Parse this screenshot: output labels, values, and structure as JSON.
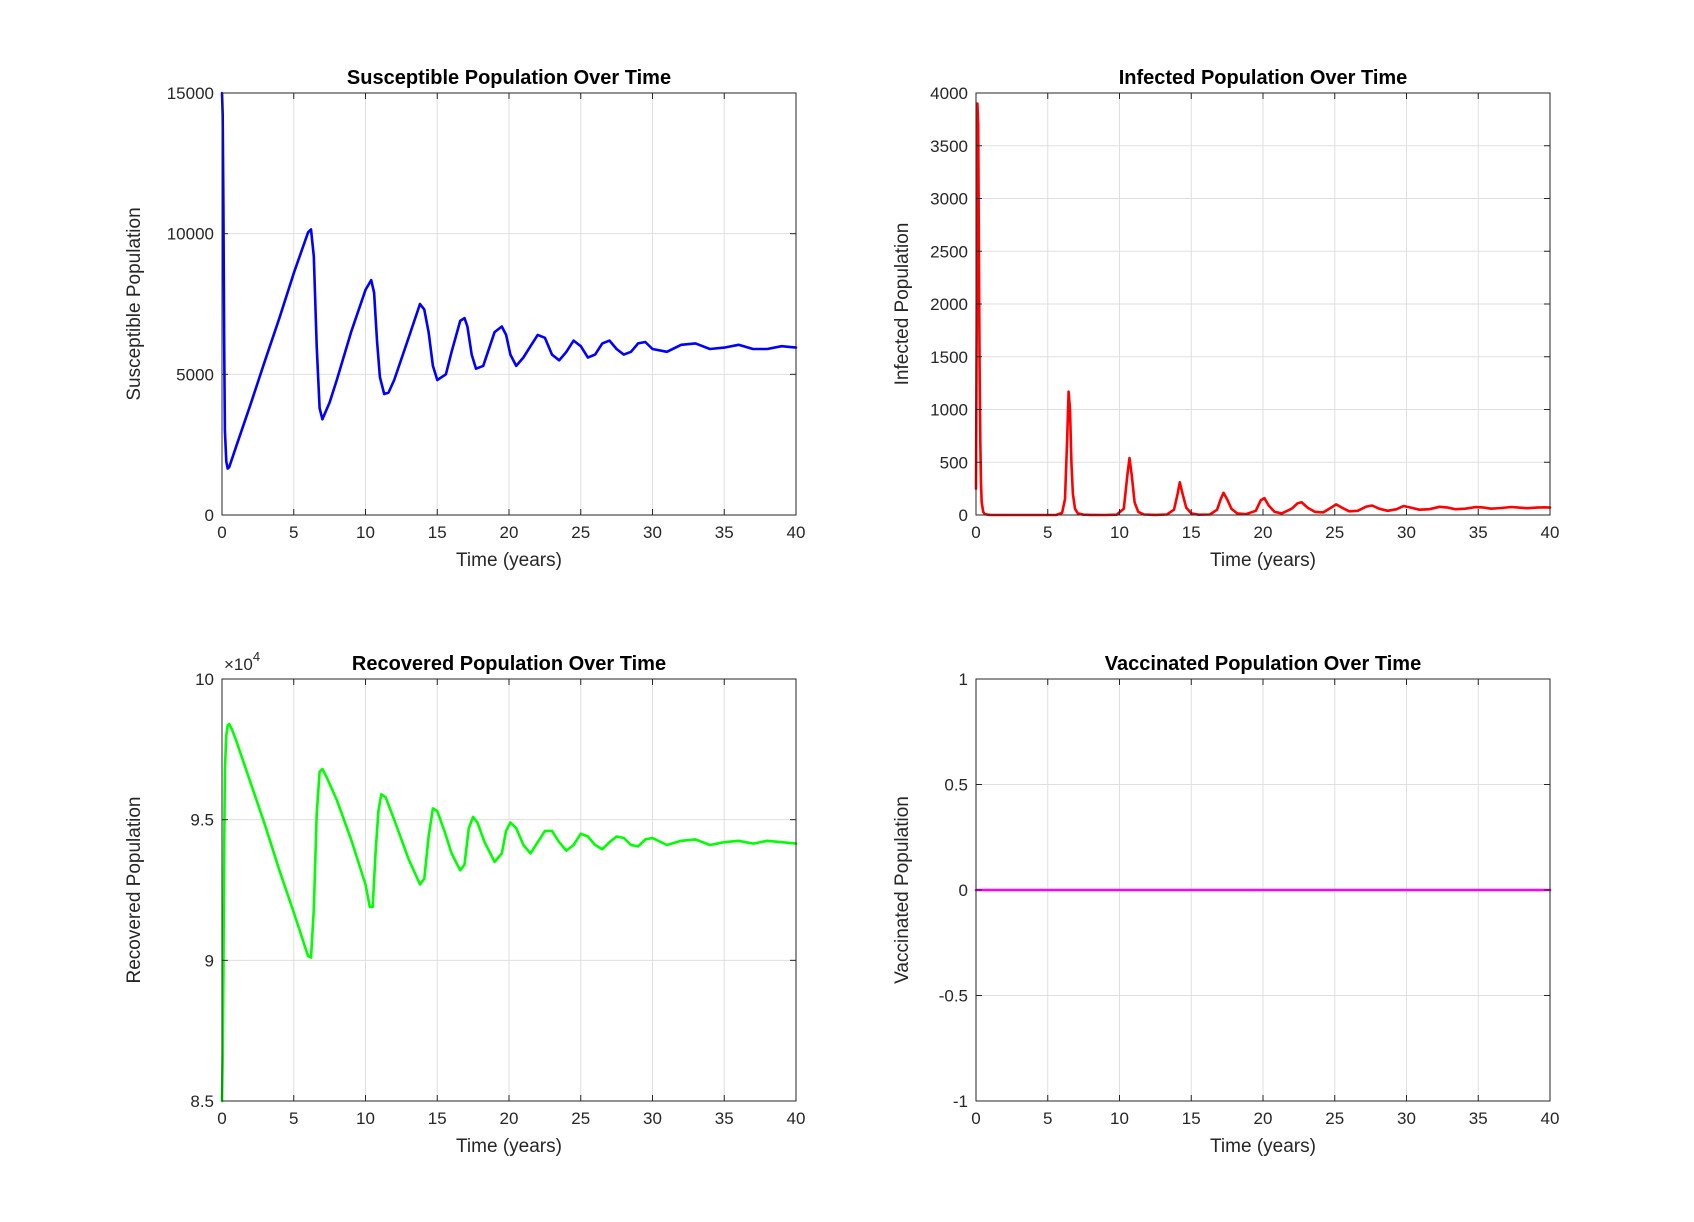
{
  "chart_data": [
    {
      "type": "line",
      "title": "Susceptible Population Over Time",
      "xlabel": "Time (years)",
      "ylabel": "Susceptible Population",
      "xlim": [
        0,
        40
      ],
      "ylim": [
        0,
        15000
      ],
      "xticks": [
        0,
        5,
        10,
        15,
        20,
        25,
        30,
        35,
        40
      ],
      "yticks": [
        0,
        5000,
        10000,
        15000
      ],
      "ytick_labels": [
        "0",
        "5000",
        "10000",
        "15000"
      ],
      "exponent_label": "",
      "grid": true,
      "color": "#0000ff",
      "series": [
        {
          "x": [
            0,
            0.05,
            0.1,
            0.15,
            0.2,
            0.3,
            0.4,
            0.5,
            1,
            2,
            3,
            4,
            5,
            6,
            6.2,
            6.4,
            6.6,
            6.8,
            7,
            7.5,
            8,
            9,
            10,
            10.4,
            10.6,
            10.8,
            11,
            11.3,
            11.6,
            12,
            13,
            13.8,
            14.1,
            14.4,
            14.7,
            15,
            15.6,
            16,
            16.6,
            16.9,
            17.1,
            17.4,
            17.7,
            18.2,
            19,
            19.5,
            19.8,
            20.1,
            20.5,
            21,
            21.5,
            22,
            22.5,
            23,
            23.5,
            24,
            24.5,
            25,
            25.5,
            26,
            26.5,
            27,
            27.5,
            28,
            28.5,
            29,
            29.5,
            30,
            31,
            32,
            33,
            34,
            35,
            36,
            37,
            38,
            39,
            40
          ],
          "y": [
            15000,
            14200,
            11000,
            6000,
            3000,
            1900,
            1650,
            1700,
            2450,
            3950,
            5500,
            7000,
            8600,
            10050,
            10150,
            9200,
            6000,
            3800,
            3400,
            4000,
            4800,
            6500,
            8000,
            8350,
            7900,
            6200,
            4900,
            4300,
            4350,
            4800,
            6300,
            7500,
            7300,
            6500,
            5300,
            4800,
            5000,
            5800,
            6900,
            7000,
            6700,
            5700,
            5200,
            5300,
            6500,
            6700,
            6400,
            5700,
            5300,
            5600,
            6000,
            6400,
            6300,
            5700,
            5500,
            5800,
            6200,
            6000,
            5600,
            5700,
            6100,
            6200,
            5900,
            5700,
            5800,
            6100,
            6150,
            5900,
            5800,
            6050,
            6100,
            5900,
            5950,
            6050,
            5900,
            5900,
            6000,
            5950
          ]
        }
      ]
    },
    {
      "type": "line",
      "title": "Infected Population Over Time",
      "xlabel": "Time (years)",
      "ylabel": "Infected Population",
      "xlim": [
        0,
        40
      ],
      "ylim": [
        0,
        4000
      ],
      "xticks": [
        0,
        5,
        10,
        15,
        20,
        25,
        30,
        35,
        40
      ],
      "yticks": [
        0,
        500,
        1000,
        1500,
        2000,
        2500,
        3000,
        3500,
        4000
      ],
      "ytick_labels": [
        "0",
        "500",
        "1000",
        "1500",
        "2000",
        "2500",
        "3000",
        "3500",
        "4000"
      ],
      "exponent_label": "",
      "grid": true,
      "color": "#ff0000",
      "series": [
        {
          "x": [
            0,
            0.05,
            0.1,
            0.15,
            0.2,
            0.25,
            0.3,
            0.35,
            0.4,
            0.5,
            0.6,
            0.8,
            1,
            2,
            3,
            4,
            5,
            5.6,
            6,
            6.2,
            6.35,
            6.45,
            6.55,
            6.65,
            6.75,
            6.9,
            7.1,
            7.5,
            8,
            9,
            9.8,
            10.3,
            10.55,
            10.7,
            10.85,
            11.05,
            11.3,
            11.7,
            12.5,
            13.3,
            13.8,
            14.05,
            14.2,
            14.4,
            14.65,
            15,
            15.5,
            16.3,
            16.8,
            17.05,
            17.25,
            17.5,
            17.8,
            18.2,
            18.8,
            19.5,
            19.85,
            20.1,
            20.4,
            20.8,
            21.3,
            22,
            22.4,
            22.7,
            23.1,
            23.6,
            24.2,
            24.8,
            25.1,
            25.5,
            26,
            26.6,
            27.2,
            27.6,
            28.1,
            28.7,
            29.3,
            29.8,
            30.3,
            30.9,
            31.6,
            32.3,
            32.8,
            33.4,
            34.1,
            34.8,
            35.3,
            35.9,
            36.6,
            37.3,
            37.8,
            38.4,
            39.1,
            39.6,
            40
          ],
          "y": [
            250,
            1800,
            3900,
            3700,
            2500,
            1400,
            700,
            300,
            120,
            30,
            10,
            3,
            1,
            0,
            0,
            0,
            0,
            1,
            20,
            150,
            700,
            1170,
            1000,
            500,
            200,
            60,
            15,
            3,
            1,
            0,
            3,
            60,
            380,
            540,
            380,
            120,
            30,
            5,
            1,
            5,
            50,
            200,
            310,
            200,
            70,
            15,
            3,
            5,
            50,
            150,
            210,
            150,
            60,
            15,
            8,
            40,
            140,
            160,
            90,
            30,
            15,
            60,
            110,
            120,
            70,
            30,
            25,
            75,
            100,
            70,
            35,
            40,
            80,
            90,
            60,
            40,
            55,
            85,
            70,
            50,
            55,
            78,
            72,
            55,
            60,
            75,
            72,
            60,
            66,
            76,
            70,
            64,
            70,
            73,
            70
          ]
        }
      ]
    },
    {
      "type": "line",
      "title": "Recovered Population Over Time",
      "xlabel": "Time (years)",
      "ylabel": "Recovered Population",
      "xlim": [
        0,
        40
      ],
      "ylim": [
        85000,
        100000
      ],
      "xticks": [
        0,
        5,
        10,
        15,
        20,
        25,
        30,
        35,
        40
      ],
      "yticks": [
        85000,
        90000,
        95000,
        100000
      ],
      "ytick_labels": [
        "8.5",
        "9",
        "9.5",
        "10"
      ],
      "exponent_label": "×10",
      "exponent_power": "4",
      "grid": true,
      "color": "#00ff00",
      "series": [
        {
          "x": [
            0,
            0.05,
            0.1,
            0.15,
            0.2,
            0.3,
            0.4,
            0.5,
            0.7,
            1,
            2,
            3,
            4,
            5,
            6,
            6.2,
            6.4,
            6.6,
            6.8,
            7,
            7.3,
            8,
            9,
            10,
            10.3,
            10.5,
            10.7,
            10.9,
            11.1,
            11.4,
            12,
            13,
            13.8,
            14.1,
            14.4,
            14.7,
            15,
            15.5,
            16,
            16.6,
            16.9,
            17.2,
            17.5,
            17.8,
            18.3,
            19,
            19.5,
            19.8,
            20.1,
            20.5,
            21,
            21.5,
            22,
            22.5,
            23,
            23.5,
            24,
            24.5,
            25,
            25.5,
            26,
            26.5,
            27,
            27.5,
            28,
            28.5,
            29,
            29.5,
            30,
            31,
            32,
            33,
            34,
            35,
            36,
            37,
            38,
            39,
            40
          ],
          "y": [
            85000,
            86500,
            89500,
            94000,
            96800,
            98000,
            98350,
            98400,
            98200,
            97800,
            96300,
            94800,
            93200,
            91700,
            90150,
            90100,
            91800,
            95200,
            96700,
            96800,
            96500,
            95700,
            94300,
            92700,
            91900,
            91900,
            93800,
            95300,
            95900,
            95800,
            95000,
            93600,
            92700,
            92900,
            94400,
            95400,
            95300,
            94600,
            93800,
            93200,
            93400,
            94700,
            95100,
            94900,
            94200,
            93500,
            93800,
            94600,
            94900,
            94700,
            94100,
            93800,
            94200,
            94600,
            94600,
            94200,
            93900,
            94100,
            94500,
            94400,
            94100,
            93950,
            94200,
            94400,
            94350,
            94100,
            94050,
            94300,
            94350,
            94100,
            94250,
            94300,
            94100,
            94200,
            94250,
            94150,
            94250,
            94200,
            94150
          ]
        }
      ]
    },
    {
      "type": "line",
      "title": "Vaccinated Population Over Time",
      "xlabel": "Time (years)",
      "ylabel": "Vaccinated Population",
      "xlim": [
        0,
        40
      ],
      "ylim": [
        -1,
        1
      ],
      "xticks": [
        0,
        5,
        10,
        15,
        20,
        25,
        30,
        35,
        40
      ],
      "yticks": [
        -1,
        -0.5,
        0,
        0.5,
        1
      ],
      "ytick_labels": [
        "-1",
        "-0.5",
        "0",
        "0.5",
        "1"
      ],
      "exponent_label": "",
      "grid": true,
      "color": "#ff00ff",
      "series": [
        {
          "x": [
            0,
            40
          ],
          "y": [
            0,
            0
          ]
        }
      ]
    }
  ]
}
